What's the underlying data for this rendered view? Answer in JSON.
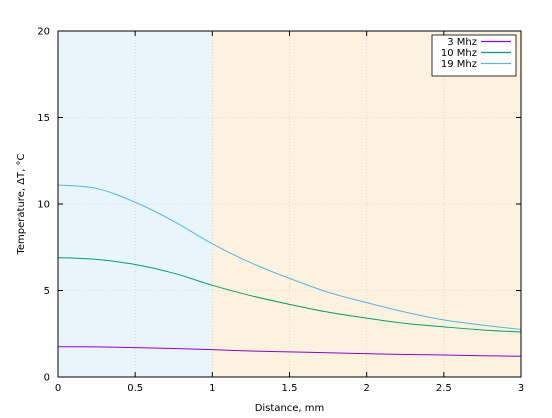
{
  "chart_data": {
    "type": "line",
    "title": "",
    "xlabel": "Distance, mm",
    "ylabel": "Temperature, ΔT, °C",
    "xlim": [
      0,
      3
    ],
    "ylim": [
      0,
      20
    ],
    "x_ticks": [
      {
        "value": 0,
        "label": "0"
      },
      {
        "value": 0.5,
        "label": "0.5"
      },
      {
        "value": 1,
        "label": "1"
      },
      {
        "value": 1.5,
        "label": "1.5"
      },
      {
        "value": 2,
        "label": "2"
      },
      {
        "value": 2.5,
        "label": "2.5"
      },
      {
        "value": 3,
        "label": "3"
      }
    ],
    "y_ticks": [
      {
        "value": 0,
        "label": "0"
      },
      {
        "value": 5,
        "label": "5"
      },
      {
        "value": 10,
        "label": "10"
      },
      {
        "value": 15,
        "label": "15"
      },
      {
        "value": 20,
        "label": "20"
      }
    ],
    "grid": true,
    "legend_position": "top-right",
    "regions": [
      {
        "x_from": 0,
        "x_to": 1,
        "color": "#e8f6fc"
      },
      {
        "x_from": 1,
        "x_to": 3,
        "color": "#fdf2dd"
      }
    ],
    "x": [
      0,
      0.25,
      0.5,
      0.75,
      1.0,
      1.25,
      1.5,
      1.75,
      2.0,
      2.25,
      2.5,
      2.75,
      3.0
    ],
    "series": [
      {
        "name": "3 Mhz",
        "color": "#9400d3",
        "values": [
          1.75,
          1.74,
          1.7,
          1.65,
          1.58,
          1.5,
          1.45,
          1.4,
          1.35,
          1.3,
          1.27,
          1.23,
          1.2
        ]
      },
      {
        "name": "10 Mhz",
        "color": "#009e73",
        "values": [
          6.9,
          6.8,
          6.5,
          6.0,
          5.3,
          4.7,
          4.2,
          3.75,
          3.4,
          3.1,
          2.9,
          2.72,
          2.6
        ]
      },
      {
        "name": "19 Mhz",
        "color": "#56b4e9",
        "values": [
          11.1,
          10.9,
          10.1,
          9.0,
          7.7,
          6.6,
          5.7,
          4.9,
          4.3,
          3.75,
          3.3,
          3.0,
          2.75
        ]
      }
    ]
  }
}
